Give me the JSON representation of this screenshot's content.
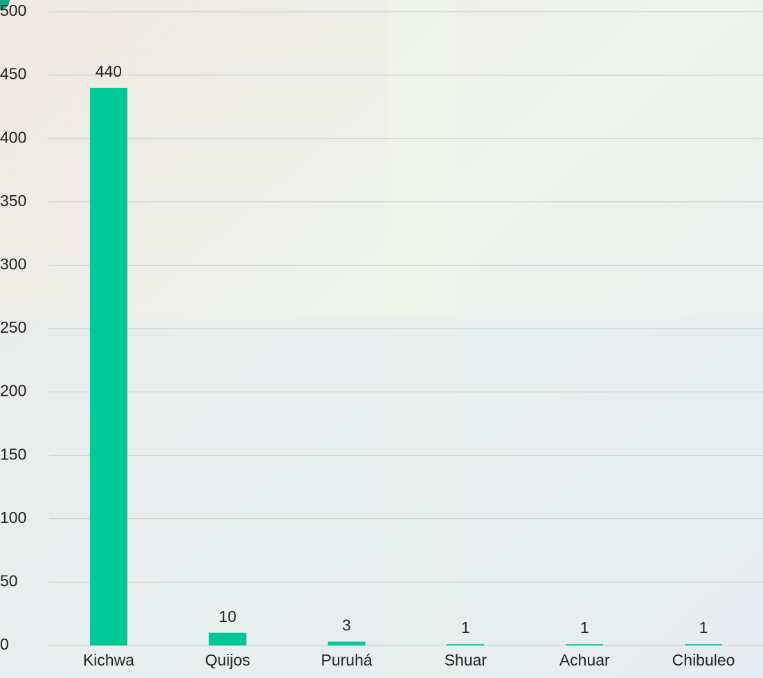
{
  "chart_data": {
    "type": "bar",
    "categories": [
      "Kichwa",
      "Quijos",
      "Puruhá",
      "Shuar",
      "Achuar",
      "Chibuleo"
    ],
    "values": [
      440,
      10,
      3,
      1,
      1,
      1
    ],
    "color": "#00c896",
    "ylim": [
      0,
      500
    ],
    "yticks": [
      0,
      50,
      100,
      150,
      200,
      250,
      300,
      350,
      400,
      450,
      500
    ],
    "grid": true
  }
}
